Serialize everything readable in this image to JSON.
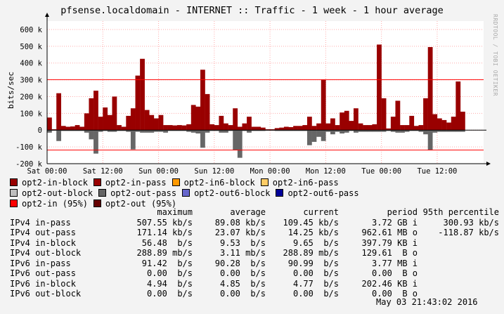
{
  "title": "pfsense.localdomain - INTERNET :: Traffic - 1 week - 1 hour average",
  "watermark": "RRDTOOL / TOBI OETIKER",
  "timestamp": "May 03 21:43:02 2016",
  "chart_data": {
    "type": "bar",
    "ylabel": "bits/sec",
    "ylim": [
      -200000,
      650000
    ],
    "yticks": [
      {
        "value": 600000,
        "label": "600 k"
      },
      {
        "value": 500000,
        "label": "500 k"
      },
      {
        "value": 400000,
        "label": "400 k"
      },
      {
        "value": 300000,
        "label": "300 k"
      },
      {
        "value": 200000,
        "label": "200 k"
      },
      {
        "value": 100000,
        "label": "100 k"
      },
      {
        "value": 0,
        "label": "0"
      },
      {
        "value": -100000,
        "label": "-100 k"
      },
      {
        "value": -200000,
        "label": "-200 k"
      }
    ],
    "xticks": [
      {
        "hour": 0,
        "label": "Sat 00:00"
      },
      {
        "hour": 12,
        "label": "Sat 12:00"
      },
      {
        "hour": 24,
        "label": "Sun 00:00"
      },
      {
        "hour": 36,
        "label": "Sun 12:00"
      },
      {
        "hour": 48,
        "label": "Mon 00:00"
      },
      {
        "hour": 60,
        "label": "Mon 12:00"
      },
      {
        "hour": 72,
        "label": "Tue 00:00"
      },
      {
        "hour": 84,
        "label": "Tue 12:00"
      }
    ],
    "xlim_hours": [
      0,
      94
    ],
    "percentile_lines": [
      {
        "name": "opt2-in (95%)",
        "value": 300930,
        "color": "#ff0000"
      },
      {
        "name": "opt2-out (95%)",
        "value": -118870,
        "color": "#ff0000"
      }
    ],
    "colors": {
      "in_block": "#990000",
      "in_pass": "#990000",
      "out_block": "#bfbfbf",
      "out_pass": "#666666",
      "chart_bg": "#ffffff",
      "grid": "#ffaaaa"
    },
    "series": [
      {
        "name": "opt2-in-pass",
        "unit": "bits/sec",
        "values": [
          75000,
          5000,
          220000,
          25000,
          20000,
          22000,
          30000,
          20000,
          100000,
          190000,
          235000,
          80000,
          135000,
          90000,
          200000,
          30000,
          20000,
          85000,
          130000,
          325000,
          425000,
          120000,
          90000,
          70000,
          90000,
          30000,
          30000,
          28000,
          30000,
          28000,
          35000,
          150000,
          140000,
          360000,
          215000,
          35000,
          30000,
          85000,
          40000,
          30000,
          130000,
          20000,
          40000,
          80000,
          20000,
          20000,
          15000,
          5000,
          5000,
          12000,
          15000,
          20000,
          18000,
          25000,
          25000,
          30000,
          80000,
          25000,
          40000,
          300000,
          40000,
          70000,
          30000,
          105000,
          115000,
          55000,
          130000,
          40000,
          30000,
          30000,
          35000,
          510000,
          190000,
          10000,
          80000,
          175000,
          30000,
          30000,
          85000,
          25000,
          30000,
          190000,
          495000,
          95000,
          70000,
          60000,
          45000,
          80000,
          290000,
          110000
        ]
      },
      {
        "name": "opt2-out-pass",
        "unit": "bits/sec",
        "values": [
          -15000,
          -3000,
          -65000,
          -5000,
          -5000,
          -5000,
          -5000,
          -5000,
          -15000,
          -55000,
          -140000,
          -10000,
          -5000,
          -10000,
          -10000,
          -5000,
          -5000,
          -10000,
          -115000,
          -10000,
          -15000,
          -15000,
          -15000,
          -10000,
          -10000,
          -15000,
          -5000,
          -5000,
          -5000,
          -5000,
          -10000,
          -15000,
          -20000,
          -105000,
          -15000,
          -5000,
          -5000,
          -15000,
          -15000,
          -5000,
          -120000,
          -165000,
          -5000,
          -15000,
          -5000,
          -5000,
          -5000,
          -3000,
          -3000,
          -5000,
          -5000,
          -5000,
          -5000,
          -5000,
          -5000,
          -5000,
          -90000,
          -70000,
          -40000,
          -65000,
          -10000,
          -25000,
          -10000,
          -20000,
          -15000,
          -5000,
          -15000,
          -10000,
          -10000,
          -10000,
          -10000,
          -10000,
          -10000,
          -5000,
          -10000,
          -15000,
          -15000,
          -10000,
          -5000,
          -5000,
          -10000,
          -25000,
          -120000,
          -15000,
          -10000,
          -10000,
          -10000,
          -10000,
          -10000,
          -10000
        ]
      }
    ]
  },
  "legend": [
    [
      {
        "name": "opt2-in-block",
        "color": "#990000"
      },
      {
        "name": "opt2-in-pass",
        "color": "#990000"
      },
      {
        "name": "opt2-in6-block",
        "color": "#ff9900"
      },
      {
        "name": "opt2-in6-pass",
        "color": "#ffcc66"
      }
    ],
    [
      {
        "name": "opt2-out-block",
        "color": "#bfbfbf"
      },
      {
        "name": "opt2-out-pass",
        "color": "#666666"
      },
      {
        "name": "opt2-out6-block",
        "color": "#6666cc"
      },
      {
        "name": "opt2-out6-pass",
        "color": "#000099"
      }
    ],
    [
      {
        "name": "opt2-in (95%)",
        "color": "#ff0000"
      },
      {
        "name": "opt2-out (95%)",
        "color": "#660000"
      }
    ]
  ],
  "stats": {
    "headers": [
      "",
      "maximum",
      "average",
      "current",
      "period",
      "95th percentile"
    ],
    "rows": [
      [
        "IPv4 in-pass",
        "507.55 kb/s",
        "89.08 kb/s",
        "109.45 kb/s",
        "3.72 GB i",
        "300.93 kb/s"
      ],
      [
        "IPv4 out-pass",
        "171.14 kb/s",
        "23.07 kb/s",
        "14.25 kb/s",
        "962.61 MB o",
        "-118.87 kb/s"
      ],
      [
        "IPv4 in-block",
        "56.48  b/s",
        "9.53  b/s",
        "9.65  b/s",
        "397.79 KB i",
        ""
      ],
      [
        "IPv4 out-block",
        "288.89 mb/s",
        "3.11 mb/s",
        "288.89 mb/s",
        "129.61  B o",
        ""
      ],
      [
        "IPv6 in-pass",
        "91.42  b/s",
        "90.28  b/s",
        "90.99  b/s",
        "3.77 MB i",
        ""
      ],
      [
        "IPv6 out-pass",
        "0.00  b/s",
        "0.00  b/s",
        "0.00  b/s",
        "0.00  B o",
        ""
      ],
      [
        "IPv6 in-block",
        "4.94  b/s",
        "4.85  b/s",
        "4.77  b/s",
        "202.46 KB i",
        ""
      ],
      [
        "IPv6 out-block",
        "0.00  b/s",
        "0.00  b/s",
        "0.00  b/s",
        "0.00  B o",
        ""
      ]
    ]
  }
}
